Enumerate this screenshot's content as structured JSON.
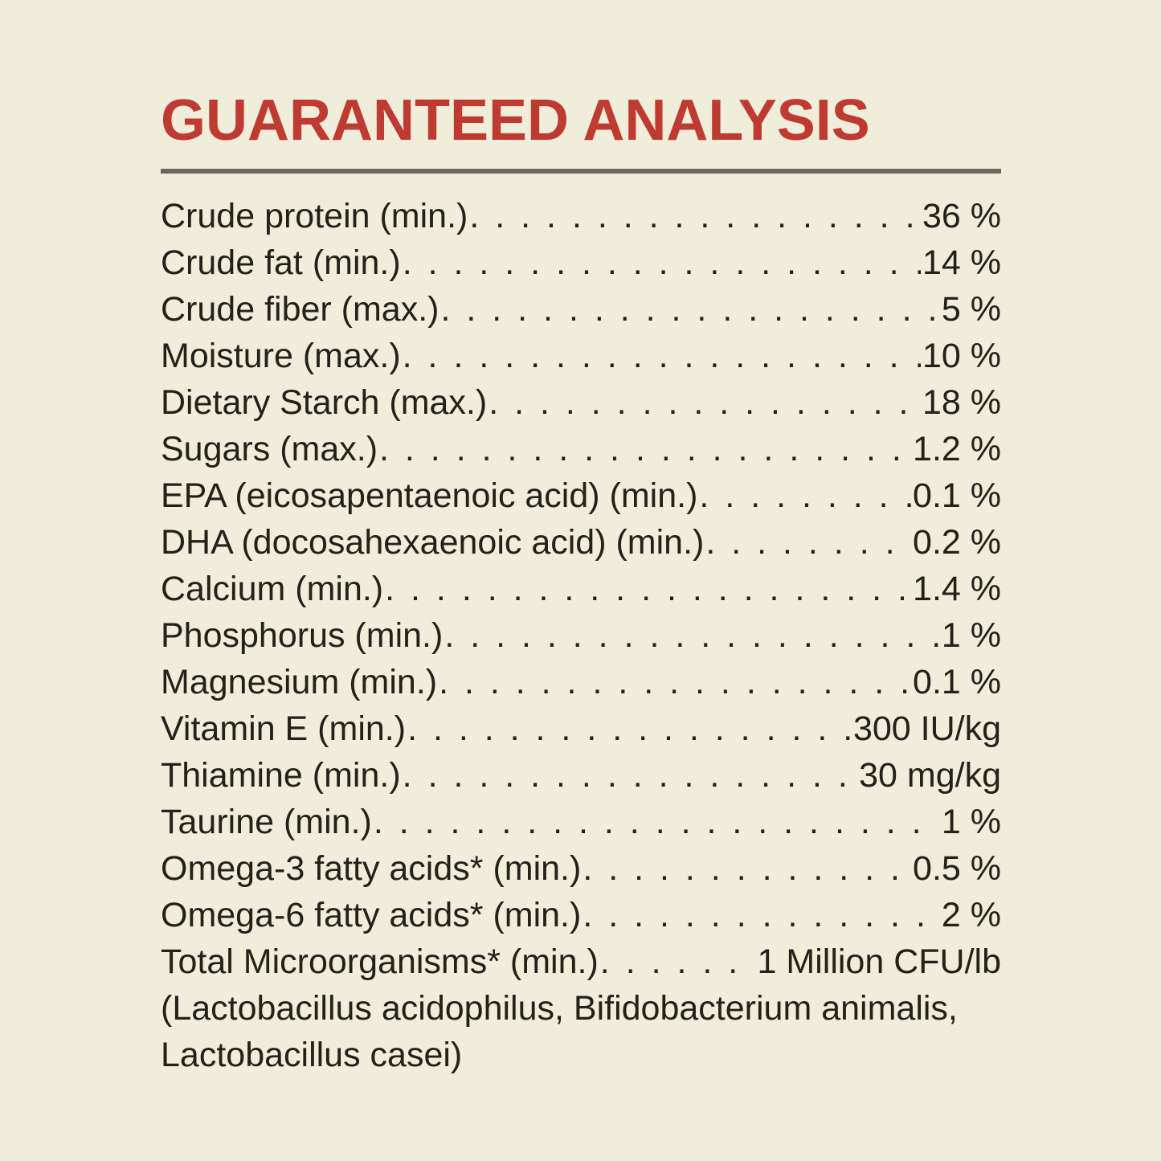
{
  "title": "GUARANTEED ANALYSIS",
  "colors": {
    "background": "#f0edda",
    "title": "#bf3b32",
    "text": "#23211a",
    "rule": "#6b685e"
  },
  "rows": [
    {
      "label": "Crude protein (min.)",
      "value": "36 %"
    },
    {
      "label": "Crude fat (min.)",
      "value": "14 %"
    },
    {
      "label": "Crude fiber (max.)",
      "value": "5 %"
    },
    {
      "label": "Moisture (max.)",
      "value": "10 %"
    },
    {
      "label": "Dietary Starch (max.)",
      "value": "18 %"
    },
    {
      "label": "Sugars (max.)",
      "value": "1.2 %"
    },
    {
      "label": "EPA (eicosapentaenoic acid) (min.)",
      "value": "0.1 %"
    },
    {
      "label": "DHA (docosahexaenoic acid) (min.)",
      "value": "0.2 %"
    },
    {
      "label": "Calcium (min.)",
      "value": "1.4 %"
    },
    {
      "label": "Phosphorus (min.)",
      "value": "1 %"
    },
    {
      "label": "Magnesium (min.)",
      "value": "0.1 %"
    },
    {
      "label": "Vitamin E (min.)",
      "value": "300 IU/kg"
    },
    {
      "label": "Thiamine (min.)",
      "value": "30 mg/kg"
    },
    {
      "label": "Taurine (min.)",
      "value": "1 %"
    },
    {
      "label": "Omega-3 fatty acids* (min.)",
      "value": "0.5 %"
    },
    {
      "label": "Omega-6 fatty acids* (min.)",
      "value": "2 %"
    },
    {
      "label": "Total Microorganisms* (min.)",
      "value": "1 Million CFU/lb"
    }
  ],
  "footnote_lines": [
    "(Lactobacillus acidophilus, Bifidobacterium animalis,",
    "Lactobacillus casei)"
  ]
}
